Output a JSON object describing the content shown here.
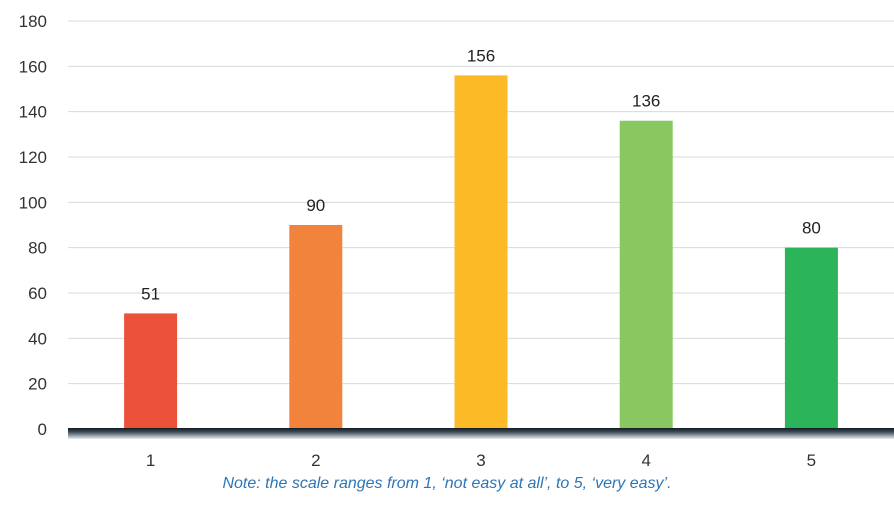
{
  "chart_data": {
    "type": "bar",
    "categories": [
      "1",
      "2",
      "3",
      "4",
      "5"
    ],
    "values": [
      51,
      90,
      156,
      136,
      80
    ],
    "colors": [
      "#ec513a",
      "#f2833c",
      "#fbba26",
      "#89c761",
      "#2cb45a"
    ],
    "ylim": [
      0,
      180
    ],
    "yticks": [
      0,
      20,
      40,
      60,
      80,
      100,
      120,
      140,
      160,
      180
    ],
    "grid": true,
    "title": "",
    "xlabel": "",
    "ylabel": ""
  },
  "note": "Note: the scale ranges from 1, ‘not easy at all’, to 5, ‘very easy’."
}
